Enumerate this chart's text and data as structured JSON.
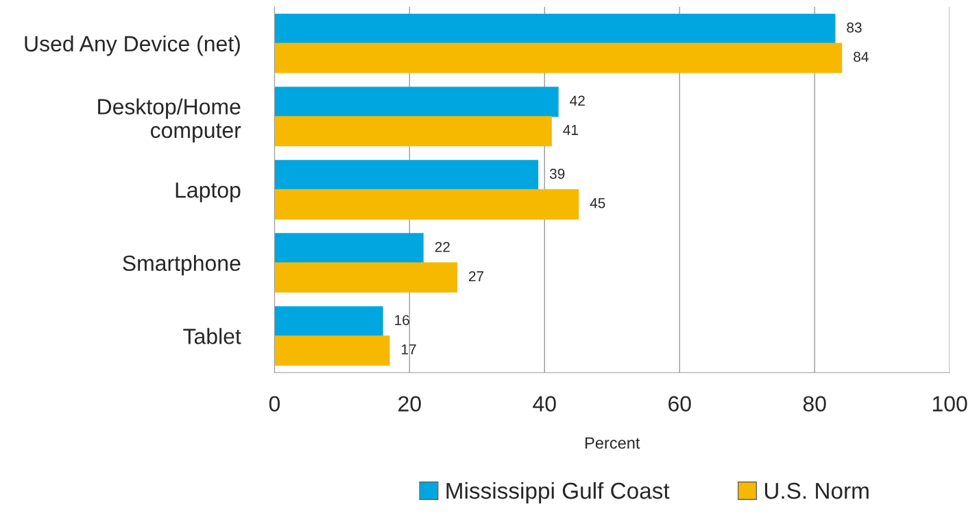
{
  "chart_data": {
    "type": "bar",
    "orientation": "horizontal",
    "xlabel": "Percent",
    "categories": [
      "Used Any Device (net)",
      "Desktop/Home\ncomputer",
      "Laptop",
      "Smartphone",
      "Tablet"
    ],
    "series": [
      {
        "name": "Mississippi Gulf Coast",
        "color": "#00a6e0",
        "values": [
          83,
          42,
          39,
          22,
          16
        ]
      },
      {
        "name": "U.S. Norm",
        "color": "#f7b800",
        "values": [
          84,
          41,
          45,
          27,
          17
        ]
      }
    ],
    "xlim": [
      0,
      100
    ],
    "xticks": [
      0,
      20,
      40,
      60,
      80,
      100
    ],
    "grid": "x",
    "legend": "bottom",
    "data_labels": true
  }
}
